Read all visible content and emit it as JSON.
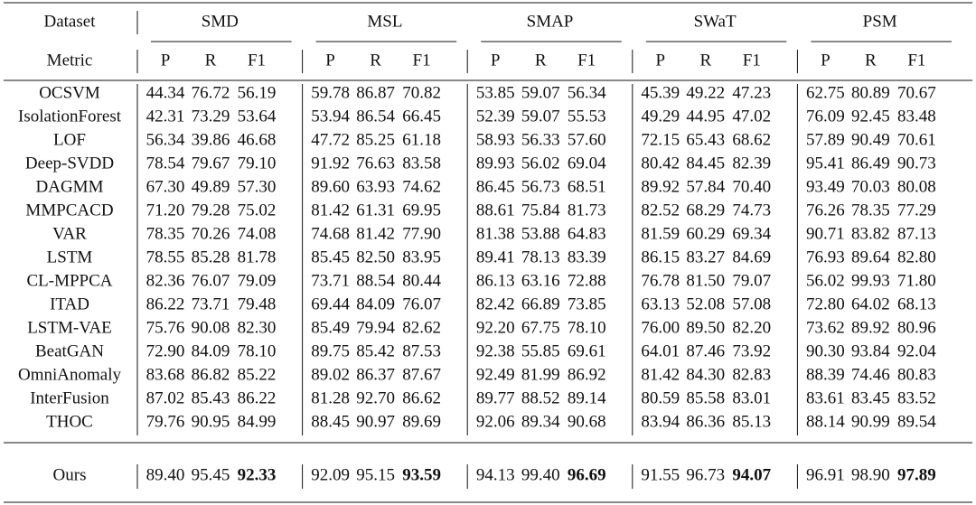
{
  "table": {
    "header": {
      "dataset": "Dataset",
      "metric": "Metric",
      "groups": [
        {
          "name": "SMD",
          "metrics": [
            "P",
            "R",
            "F1"
          ]
        },
        {
          "name": "MSL",
          "metrics": [
            "P",
            "R",
            "F1"
          ]
        },
        {
          "name": "SMAP",
          "metrics": [
            "P",
            "R",
            "F1"
          ]
        },
        {
          "name": "SWaT",
          "metrics": [
            "P",
            "R",
            "F1"
          ]
        },
        {
          "name": "PSM",
          "metrics": [
            "P",
            "R",
            "F1"
          ]
        }
      ]
    },
    "rows": [
      {
        "name": "OCSVM",
        "values": [
          "44.34",
          "76.72",
          "56.19",
          "59.78",
          "86.87",
          "70.82",
          "53.85",
          "59.07",
          "56.34",
          "45.39",
          "49.22",
          "47.23",
          "62.75",
          "80.89",
          "70.67"
        ]
      },
      {
        "name": "IsolationForest",
        "values": [
          "42.31",
          "73.29",
          "53.64",
          "53.94",
          "86.54",
          "66.45",
          "52.39",
          "59.07",
          "55.53",
          "49.29",
          "44.95",
          "47.02",
          "76.09",
          "92.45",
          "83.48"
        ]
      },
      {
        "name": "LOF",
        "values": [
          "56.34",
          "39.86",
          "46.68",
          "47.72",
          "85.25",
          "61.18",
          "58.93",
          "56.33",
          "57.60",
          "72.15",
          "65.43",
          "68.62",
          "57.89",
          "90.49",
          "70.61"
        ]
      },
      {
        "name": "Deep-SVDD",
        "values": [
          "78.54",
          "79.67",
          "79.10",
          "91.92",
          "76.63",
          "83.58",
          "89.93",
          "56.02",
          "69.04",
          "80.42",
          "84.45",
          "82.39",
          "95.41",
          "86.49",
          "90.73"
        ]
      },
      {
        "name": "DAGMM",
        "values": [
          "67.30",
          "49.89",
          "57.30",
          "89.60",
          "63.93",
          "74.62",
          "86.45",
          "56.73",
          "68.51",
          "89.92",
          "57.84",
          "70.40",
          "93.49",
          "70.03",
          "80.08"
        ]
      },
      {
        "name": "MMPCACD",
        "values": [
          "71.20",
          "79.28",
          "75.02",
          "81.42",
          "61.31",
          "69.95",
          "88.61",
          "75.84",
          "81.73",
          "82.52",
          "68.29",
          "74.73",
          "76.26",
          "78.35",
          "77.29"
        ]
      },
      {
        "name": "VAR",
        "values": [
          "78.35",
          "70.26",
          "74.08",
          "74.68",
          "81.42",
          "77.90",
          "81.38",
          "53.88",
          "64.83",
          "81.59",
          "60.29",
          "69.34",
          "90.71",
          "83.82",
          "87.13"
        ]
      },
      {
        "name": "LSTM",
        "values": [
          "78.55",
          "85.28",
          "81.78",
          "85.45",
          "82.50",
          "83.95",
          "89.41",
          "78.13",
          "83.39",
          "86.15",
          "83.27",
          "84.69",
          "76.93",
          "89.64",
          "82.80"
        ]
      },
      {
        "name": "CL-MPPCA",
        "values": [
          "82.36",
          "76.07",
          "79.09",
          "73.71",
          "88.54",
          "80.44",
          "86.13",
          "63.16",
          "72.88",
          "76.78",
          "81.50",
          "79.07",
          "56.02",
          "99.93",
          "71.80"
        ]
      },
      {
        "name": "ITAD",
        "values": [
          "86.22",
          "73.71",
          "79.48",
          "69.44",
          "84.09",
          "76.07",
          "82.42",
          "66.89",
          "73.85",
          "63.13",
          "52.08",
          "57.08",
          "72.80",
          "64.02",
          "68.13"
        ]
      },
      {
        "name": "LSTM-VAE",
        "values": [
          "75.76",
          "90.08",
          "82.30",
          "85.49",
          "79.94",
          "82.62",
          "92.20",
          "67.75",
          "78.10",
          "76.00",
          "89.50",
          "82.20",
          "73.62",
          "89.92",
          "80.96"
        ]
      },
      {
        "name": "BeatGAN",
        "values": [
          "72.90",
          "84.09",
          "78.10",
          "89.75",
          "85.42",
          "87.53",
          "92.38",
          "55.85",
          "69.61",
          "64.01",
          "87.46",
          "73.92",
          "90.30",
          "93.84",
          "92.04"
        ]
      },
      {
        "name": "OmniAnomaly",
        "values": [
          "83.68",
          "86.82",
          "85.22",
          "89.02",
          "86.37",
          "87.67",
          "92.49",
          "81.99",
          "86.92",
          "81.42",
          "84.30",
          "82.83",
          "88.39",
          "74.46",
          "80.83"
        ]
      },
      {
        "name": "InterFusion",
        "values": [
          "87.02",
          "85.43",
          "86.22",
          "81.28",
          "92.70",
          "86.62",
          "89.77",
          "88.52",
          "89.14",
          "80.59",
          "85.58",
          "83.01",
          "83.61",
          "83.45",
          "83.52"
        ]
      },
      {
        "name": "THOC",
        "values": [
          "79.76",
          "90.95",
          "84.99",
          "88.45",
          "90.97",
          "89.69",
          "92.06",
          "89.34",
          "90.68",
          "83.94",
          "86.36",
          "85.13",
          "88.14",
          "90.99",
          "89.54"
        ]
      },
      {
        "name": "Ours",
        "values": [
          "89.40",
          "95.45",
          "92.33",
          "92.09",
          "95.15",
          "93.59",
          "94.13",
          "99.40",
          "96.69",
          "91.55",
          "96.73",
          "94.07",
          "96.91",
          "98.90",
          "97.89"
        ]
      }
    ]
  }
}
